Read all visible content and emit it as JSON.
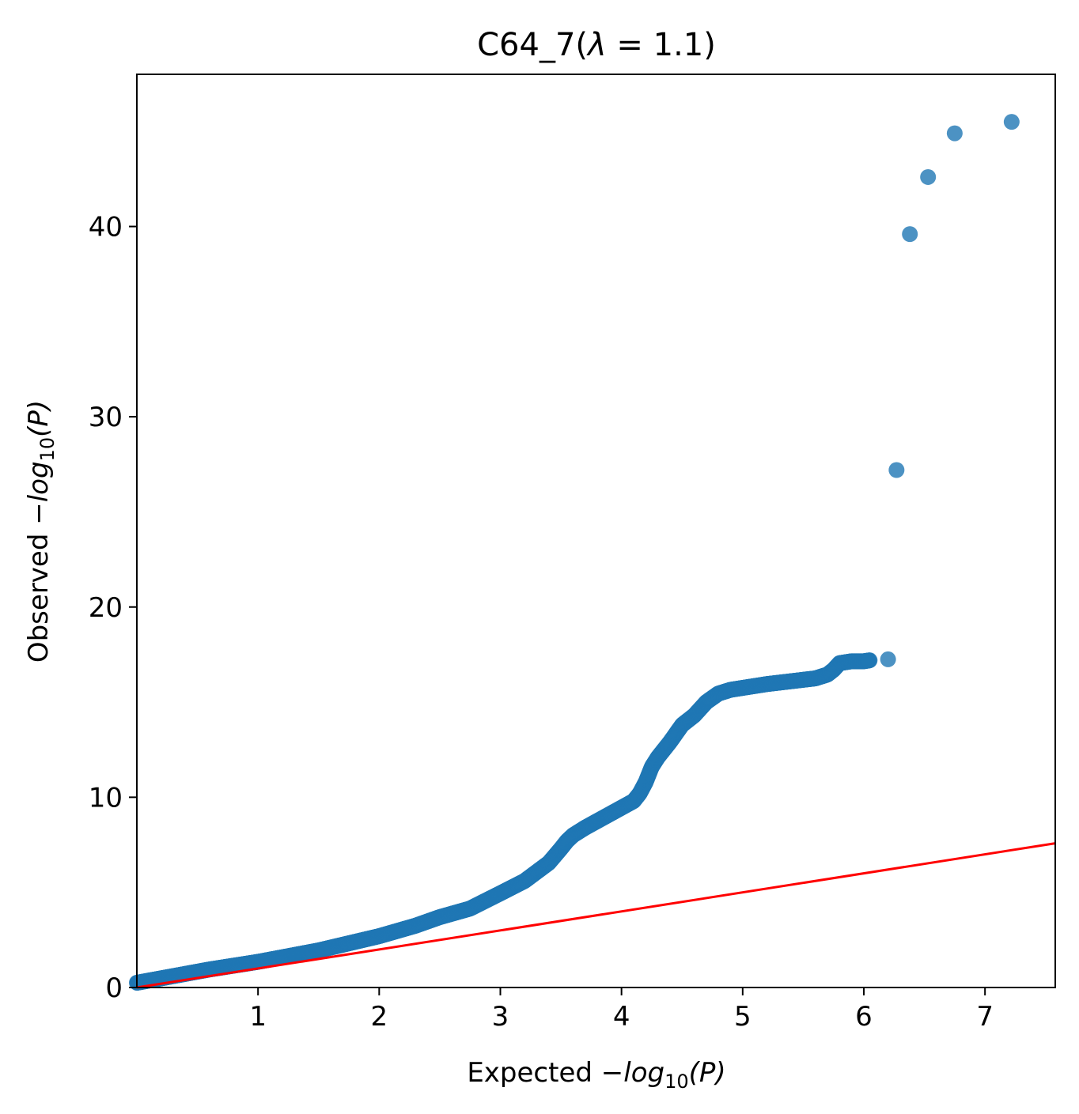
{
  "chart_data": {
    "type": "scatter",
    "title": {
      "prefix": "C64_7(",
      "lambda": "λ",
      "eq": " = 1.1)"
    },
    "xlabel": {
      "prefix": "Expected −",
      "log": "log",
      "sub": "10",
      "suffix": "(P)"
    },
    "ylabel": {
      "prefix": "Observed −",
      "log": "log",
      "sub": "10",
      "suffix": "(P)"
    },
    "xlim": [
      0,
      7.58
    ],
    "ylim": [
      0,
      48
    ],
    "x_ticks": [
      1,
      2,
      3,
      4,
      5,
      6,
      7
    ],
    "y_ticks": [
      0,
      10,
      20,
      30,
      40
    ],
    "grid": false,
    "legend": "none",
    "colors": {
      "points": "#1f77b4",
      "reference_line": "#ff0000"
    },
    "reference_line": {
      "x": [
        0,
        7.58
      ],
      "y": [
        0,
        7.58
      ]
    },
    "curve": {
      "x": [
        0.0,
        0.3,
        0.6,
        1.0,
        1.5,
        2.0,
        2.3,
        2.5,
        2.75,
        3.0,
        3.2,
        3.4,
        3.5,
        3.55,
        3.6,
        3.7,
        3.8,
        3.9,
        4.0,
        4.1,
        4.15,
        4.2,
        4.25,
        4.3,
        4.35,
        4.4,
        4.5,
        4.6,
        4.7,
        4.8,
        4.9,
        5.0,
        5.2,
        5.4,
        5.6,
        5.7,
        5.75,
        5.8,
        5.9,
        6.0,
        6.05
      ],
      "y": [
        0.25,
        0.6,
        0.95,
        1.35,
        1.95,
        2.7,
        3.25,
        3.7,
        4.15,
        4.95,
        5.6,
        6.55,
        7.3,
        7.7,
        8.0,
        8.4,
        8.75,
        9.1,
        9.45,
        9.8,
        10.2,
        10.8,
        11.6,
        12.1,
        12.5,
        12.9,
        13.8,
        14.3,
        15.0,
        15.45,
        15.65,
        15.75,
        15.95,
        16.1,
        16.25,
        16.45,
        16.7,
        17.05,
        17.15,
        17.15,
        17.2
      ]
    },
    "isolated_points": [
      {
        "x": 6.2,
        "y": 17.25
      },
      {
        "x": 6.27,
        "y": 27.2
      },
      {
        "x": 6.38,
        "y": 39.6
      },
      {
        "x": 6.53,
        "y": 42.6
      },
      {
        "x": 6.75,
        "y": 44.9
      },
      {
        "x": 7.22,
        "y": 45.5
      }
    ]
  }
}
